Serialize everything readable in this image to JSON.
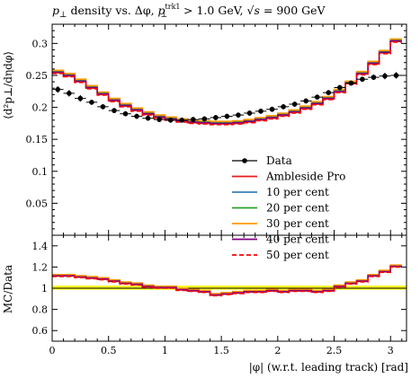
{
  "chart_data": {
    "type": "line",
    "title_parts": {
      "p": "p",
      "perp": "⊥",
      "density": " density vs. Δφ, ",
      "trk": "trk1",
      "gt": " > 1.0 GeV, ",
      "sqrt": "√s",
      "energy": " = 900 GeV"
    },
    "ylabel": "⟨d²p⊥/dηdφ⟩",
    "ratio_ylabel": "MC/Data",
    "xlabel": "|φ| (w.r.t. leading track) [rad]",
    "xlim": [
      0,
      3.1416
    ],
    "ylim": [
      0,
      0.33
    ],
    "ratio_ylim": [
      0.5,
      1.5
    ],
    "x_ticks": [
      0,
      0.5,
      1,
      1.5,
      2,
      2.5,
      3
    ],
    "x_tick_labels": [
      "0",
      "0.5",
      "1",
      "1.5",
      "2",
      "2.5",
      "3"
    ],
    "y_ticks": [
      0.05,
      0.1,
      0.15,
      0.2,
      0.25,
      0.3
    ],
    "y_tick_labels": [
      "0.05",
      "0.1",
      "0.15",
      "0.2",
      "0.25",
      "0.3"
    ],
    "ratio_y_ticks": [
      0.6,
      0.8,
      1,
      1.2,
      1.4
    ],
    "ratio_y_tick_labels": [
      "0.6",
      "0.8",
      "1",
      "1.2",
      "1.4"
    ],
    "legend_position": "lower-center",
    "data": {
      "name": "Data",
      "x": [
        0.05,
        0.15,
        0.25,
        0.35,
        0.45,
        0.55,
        0.65,
        0.75,
        0.85,
        0.95,
        1.05,
        1.15,
        1.25,
        1.35,
        1.45,
        1.55,
        1.65,
        1.75,
        1.85,
        1.95,
        2.05,
        2.15,
        2.25,
        2.35,
        2.45,
        2.55,
        2.65,
        2.75,
        2.85,
        2.95,
        3.05
      ],
      "y": [
        0.228,
        0.222,
        0.214,
        0.208,
        0.201,
        0.195,
        0.19,
        0.186,
        0.183,
        0.181,
        0.18,
        0.18,
        0.181,
        0.182,
        0.184,
        0.186,
        0.188,
        0.191,
        0.194,
        0.197,
        0.201,
        0.205,
        0.21,
        0.216,
        0.223,
        0.231,
        0.238,
        0.244,
        0.247,
        0.249,
        0.25
      ],
      "err": [
        0.005,
        0.005,
        0.005,
        0.004,
        0.004,
        0.004,
        0.004,
        0.004,
        0.004,
        0.004,
        0.004,
        0.004,
        0.004,
        0.004,
        0.004,
        0.004,
        0.004,
        0.004,
        0.004,
        0.004,
        0.004,
        0.004,
        0.004,
        0.004,
        0.004,
        0.004,
        0.004,
        0.004,
        0.004,
        0.005,
        0.005
      ]
    },
    "series": [
      {
        "name": "Ambleside Pro",
        "color": "#e41a1c",
        "dash": false,
        "offset": -0.002,
        "ratio_offset": -0.006
      },
      {
        "name": "10 per cent",
        "color": "#377eb8",
        "dash": false,
        "offset": 0.001,
        "ratio_offset": 0.004
      },
      {
        "name": "20 per cent",
        "color": "#2ca02c",
        "dash": false,
        "offset": 0.0,
        "ratio_offset": 0.0
      },
      {
        "name": "30 per cent",
        "color": "#ff9900",
        "dash": false,
        "offset": 0.002,
        "ratio_offset": 0.009
      },
      {
        "name": "40 per cent",
        "color": "#800080",
        "dash": false,
        "offset": -0.001,
        "ratio_offset": -0.003
      },
      {
        "name": "50 per cent",
        "color": "#ff0000",
        "dash": true,
        "offset": -0.003,
        "ratio_offset": -0.01
      }
    ],
    "mc_base": [
      0.256,
      0.251,
      0.242,
      0.232,
      0.222,
      0.212,
      0.204,
      0.197,
      0.191,
      0.186,
      0.183,
      0.18,
      0.178,
      0.177,
      0.176,
      0.176,
      0.177,
      0.179,
      0.182,
      0.185,
      0.189,
      0.194,
      0.2,
      0.207,
      0.215,
      0.226,
      0.239,
      0.254,
      0.27,
      0.287,
      0.305
    ],
    "ratio_base": [
      1.12,
      1.12,
      1.11,
      1.1,
      1.09,
      1.07,
      1.05,
      1.04,
      1.02,
      1.01,
      1.01,
      0.99,
      0.98,
      0.97,
      0.94,
      0.95,
      0.96,
      0.97,
      0.97,
      0.98,
      0.97,
      0.98,
      0.98,
      0.97,
      0.98,
      1.02,
      1.05,
      1.07,
      1.12,
      1.16,
      1.21
    ],
    "band": [
      0.985,
      1.025
    ]
  }
}
